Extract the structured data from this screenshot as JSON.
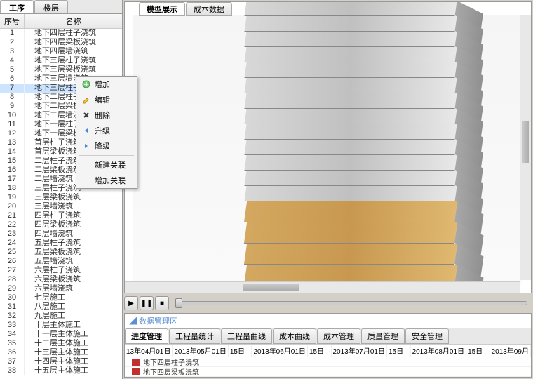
{
  "left_tabs": {
    "t1": "工序",
    "t2": "楼层"
  },
  "columns": {
    "seq": "序号",
    "name": "名称"
  },
  "rows": [
    {
      "n": 1,
      "name": "地下四层柱子浇筑"
    },
    {
      "n": 2,
      "name": "地下四层梁板浇筑"
    },
    {
      "n": 3,
      "name": "地下四层墙浇筑"
    },
    {
      "n": 4,
      "name": "地下三层柱子浇筑"
    },
    {
      "n": 5,
      "name": "地下三层梁板浇筑"
    },
    {
      "n": 6,
      "name": "地下三层墙浇筑"
    },
    {
      "n": 7,
      "name": "地下三层柱子"
    },
    {
      "n": 8,
      "name": "地下二层柱子"
    },
    {
      "n": 9,
      "name": "地下二层梁板"
    },
    {
      "n": 10,
      "name": "地下二层墙浇"
    },
    {
      "n": 11,
      "name": "地下一层柱子"
    },
    {
      "n": 12,
      "name": "地下一层梁板"
    },
    {
      "n": 13,
      "name": "首层柱子浇筑"
    },
    {
      "n": 14,
      "name": "首层梁板浇筑"
    },
    {
      "n": 15,
      "name": "二层柱子浇筑"
    },
    {
      "n": 16,
      "name": "二层梁板浇筑"
    },
    {
      "n": 17,
      "name": "二层墙浇筑"
    },
    {
      "n": 18,
      "name": "三层柱子浇筑"
    },
    {
      "n": 19,
      "name": "三层梁板浇筑"
    },
    {
      "n": 20,
      "name": "三层墙浇筑"
    },
    {
      "n": 21,
      "name": "四层柱子浇筑"
    },
    {
      "n": 22,
      "name": "四层梁板浇筑"
    },
    {
      "n": 23,
      "name": "四层墙浇筑"
    },
    {
      "n": 24,
      "name": "五层柱子浇筑"
    },
    {
      "n": 25,
      "name": "五层梁板浇筑"
    },
    {
      "n": 26,
      "name": "五层墙浇筑"
    },
    {
      "n": 27,
      "name": "六层柱子浇筑"
    },
    {
      "n": 28,
      "name": "六层梁板浇筑"
    },
    {
      "n": 29,
      "name": "六层墙浇筑"
    },
    {
      "n": 30,
      "name": "七层施工"
    },
    {
      "n": 31,
      "name": "八层施工"
    },
    {
      "n": 32,
      "name": "九层施工"
    },
    {
      "n": 33,
      "name": "十层主体施工"
    },
    {
      "n": 34,
      "name": "十一层主体施工"
    },
    {
      "n": 35,
      "name": "十二层主体施工"
    },
    {
      "n": 36,
      "name": "十三层主体施工"
    },
    {
      "n": 37,
      "name": "十四层主体施工"
    },
    {
      "n": 38,
      "name": "十五层主体施工"
    }
  ],
  "context_menu": {
    "add": "增加",
    "edit": "编辑",
    "delete": "删除",
    "up": "升级",
    "down": "降级",
    "new_link": "新建关联",
    "add_link": "增加关联"
  },
  "viewer_tabs": {
    "model": "模型展示",
    "cost": "成本数据"
  },
  "data_area_title": "数据管理区",
  "mgmt_tabs": [
    "进度管理",
    "工程量统计",
    "工程量曲线",
    "成本曲线",
    "成本管理",
    "质量管理",
    "安全管理"
  ],
  "timeline_dates": [
    "13年04月01日",
    "2013年05月01日",
    "15日",
    "2013年06月01日",
    "15日",
    "2013年07月01日",
    "15日",
    "2013年08月01日",
    "15日",
    "2013年09月"
  ],
  "gantt_items": [
    "地下四层柱子浇筑",
    "地下四层梁板浇筑"
  ],
  "building_3d": {
    "total_floors": 18,
    "lower_floors_start": 13,
    "floor_height": 22,
    "lower_floor_height": 30,
    "colors": {
      "upper_floor": "#d0d0d0",
      "lower_floor": "#d4a860",
      "background": "#f5f5f5",
      "side_shade": "#a0a0a0"
    }
  },
  "colors": {
    "accent": "#5b8fd4",
    "gantt_bar": "#c03030",
    "panel_bg": "#d4d0c8",
    "selected_row": "#cce4ff"
  }
}
